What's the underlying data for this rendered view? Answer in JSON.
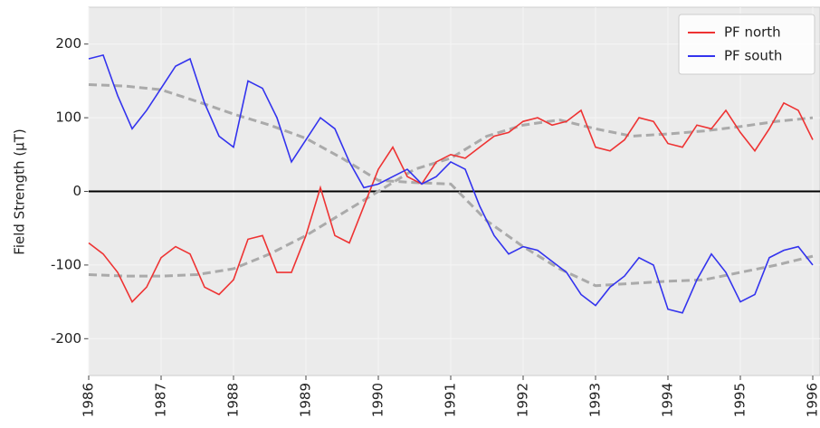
{
  "chart_data": {
    "type": "line",
    "y_label": "Field Strength (μT)",
    "xlim": [
      1986,
      1996.1
    ],
    "ylim": [
      -250,
      250
    ],
    "xticks": [
      1986,
      1987,
      1988,
      1989,
      1990,
      1991,
      1992,
      1993,
      1994,
      1995,
      1996
    ],
    "yticks": [
      -200,
      -100,
      0,
      100,
      200
    ],
    "grid": true,
    "legend": "upper right",
    "hline": 0,
    "series": [
      {
        "name": "PF north",
        "color": "#ee3333",
        "dashed": false,
        "x": [
          1986.0,
          1986.2,
          1986.4,
          1986.6,
          1986.8,
          1987.0,
          1987.2,
          1987.4,
          1987.6,
          1987.8,
          1988.0,
          1988.2,
          1988.4,
          1988.6,
          1988.8,
          1989.0,
          1989.2,
          1989.4,
          1989.6,
          1989.8,
          1990.0,
          1990.2,
          1990.4,
          1990.6,
          1990.8,
          1991.0,
          1991.2,
          1991.4,
          1991.6,
          1991.8,
          1992.0,
          1992.2,
          1992.4,
          1992.6,
          1992.8,
          1993.0,
          1993.2,
          1993.4,
          1993.6,
          1993.8,
          1994.0,
          1994.2,
          1994.4,
          1994.6,
          1994.8,
          1995.0,
          1995.2,
          1995.4,
          1995.6,
          1995.8,
          1996.0
        ],
        "values": [
          -70,
          -85,
          -110,
          -150,
          -130,
          -90,
          -75,
          -85,
          -130,
          -140,
          -120,
          -65,
          -60,
          -110,
          -110,
          -60,
          5,
          -60,
          -70,
          -20,
          30,
          60,
          20,
          10,
          40,
          50,
          45,
          60,
          75,
          80,
          95,
          100,
          90,
          95,
          110,
          60,
          55,
          70,
          100,
          95,
          65,
          60,
          90,
          85,
          110,
          80,
          55,
          85,
          120,
          110,
          70
        ]
      },
      {
        "name": "PF south",
        "color": "#3333ee",
        "dashed": false,
        "x": [
          1986.0,
          1986.2,
          1986.4,
          1986.6,
          1986.8,
          1987.0,
          1987.2,
          1987.4,
          1987.6,
          1987.8,
          1988.0,
          1988.2,
          1988.4,
          1988.6,
          1988.8,
          1989.0,
          1989.2,
          1989.4,
          1989.6,
          1989.8,
          1990.0,
          1990.2,
          1990.4,
          1990.6,
          1990.8,
          1991.0,
          1991.2,
          1991.4,
          1991.6,
          1991.8,
          1992.0,
          1992.2,
          1992.4,
          1992.6,
          1992.8,
          1993.0,
          1993.2,
          1993.4,
          1993.6,
          1993.8,
          1994.0,
          1994.2,
          1994.4,
          1994.6,
          1994.8,
          1995.0,
          1995.2,
          1995.4,
          1995.6,
          1995.8,
          1996.0
        ],
        "values": [
          180,
          185,
          130,
          85,
          110,
          140,
          170,
          180,
          120,
          75,
          60,
          150,
          140,
          100,
          40,
          70,
          100,
          85,
          40,
          5,
          10,
          20,
          30,
          10,
          20,
          40,
          30,
          -20,
          -60,
          -85,
          -75,
          -80,
          -95,
          -110,
          -140,
          -155,
          -130,
          -115,
          -90,
          -100,
          -160,
          -165,
          -120,
          -85,
          -110,
          -150,
          -140,
          -90,
          -80,
          -75,
          -100
        ]
      },
      {
        "color": "#aaaaaa",
        "dashed": true,
        "x": [
          1986,
          1986.5,
          1987,
          1987.5,
          1988,
          1988.5,
          1989,
          1989.5,
          1990,
          1990.5,
          1991,
          1991.5,
          1992,
          1992.5,
          1993,
          1993.5,
          1994,
          1994.5,
          1995,
          1995.5,
          1996
        ],
        "values": [
          145,
          143,
          138,
          122,
          105,
          90,
          72,
          45,
          15,
          12,
          10,
          -40,
          -75,
          -105,
          -128,
          -125,
          -122,
          -120,
          -110,
          -100,
          -88
        ]
      },
      {
        "color": "#aaaaaa",
        "dashed": true,
        "x": [
          1986,
          1986.5,
          1987,
          1987.5,
          1988,
          1988.5,
          1989,
          1989.5,
          1990,
          1990.5,
          1991,
          1991.5,
          1992,
          1992.5,
          1993,
          1993.5,
          1994,
          1994.5,
          1995,
          1995.5,
          1996
        ],
        "values": [
          -113,
          -115,
          -115,
          -113,
          -105,
          -85,
          -60,
          -30,
          0,
          30,
          45,
          75,
          90,
          97,
          85,
          75,
          78,
          82,
          88,
          95,
          100
        ]
      }
    ]
  }
}
